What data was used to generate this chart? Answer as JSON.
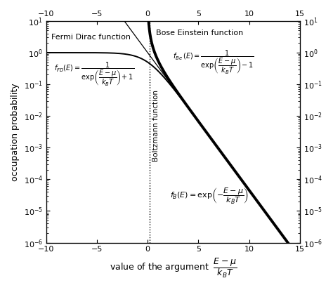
{
  "xmin": -10,
  "xmax": 15,
  "ymin": 1e-06,
  "ymax": 10,
  "xlabel_prefix": "value of the argument  ",
  "ylabel": "occupation probability",
  "line_color": "black",
  "bg_color": "white",
  "dotted_x": 0.2,
  "xticks": [
    -10,
    -5,
    0,
    5,
    10,
    15
  ]
}
